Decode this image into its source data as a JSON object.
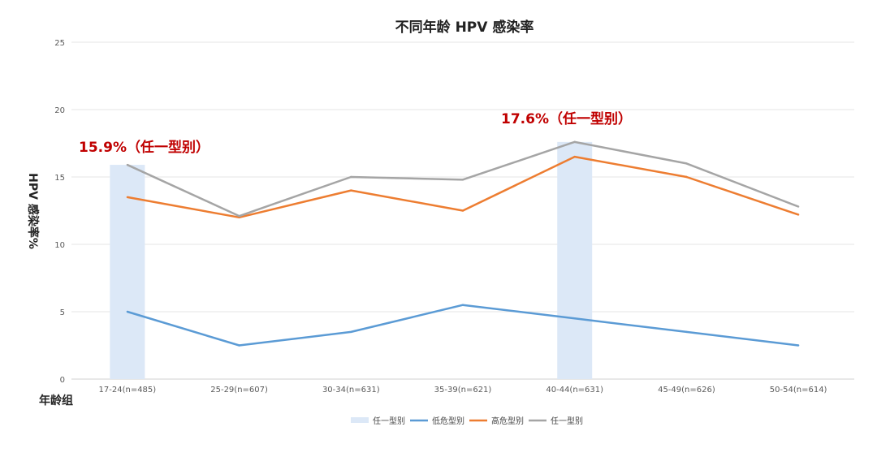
{
  "chart_data": {
    "type": "line",
    "title": "不同年龄 HPV 感染率",
    "xlabel": "年龄组",
    "ylabel": "HPV 感染率%",
    "ylim": [
      0,
      25
    ],
    "yticks": [
      0,
      5,
      10,
      15,
      20,
      25
    ],
    "grid": true,
    "legend_placement": "bottom",
    "categories": [
      "17-24(n=485)",
      "25-29(n=607)",
      "30-34(n=631)",
      "35-39(n=621)",
      "40-44(n=631)",
      "45-49(n=626)",
      "50-54(n=614)"
    ],
    "bars": {
      "name": "任一型别",
      "color": "#dce8f7",
      "values": [
        15.9,
        null,
        null,
        null,
        17.6,
        null,
        null
      ]
    },
    "series": [
      {
        "name": "低危型别",
        "color": "#5b9bd5",
        "values": [
          5.0,
          2.5,
          3.5,
          5.5,
          4.5,
          3.5,
          2.5
        ]
      },
      {
        "name": "高危型别",
        "color": "#ed7d31",
        "values": [
          13.5,
          12.0,
          14.0,
          12.5,
          16.5,
          15.0,
          12.2
        ]
      },
      {
        "name": "任一型别",
        "color": "#a5a5a5",
        "values": [
          15.9,
          12.1,
          15.0,
          14.8,
          17.6,
          16.0,
          12.8
        ]
      }
    ],
    "annotations": [
      {
        "text": "15.9%（任一型别）",
        "category": "17-24(n=485)",
        "color": "#c00000"
      },
      {
        "text": "17.6%（任一型别）",
        "category": "40-44(n=631)",
        "color": "#c00000"
      }
    ]
  }
}
